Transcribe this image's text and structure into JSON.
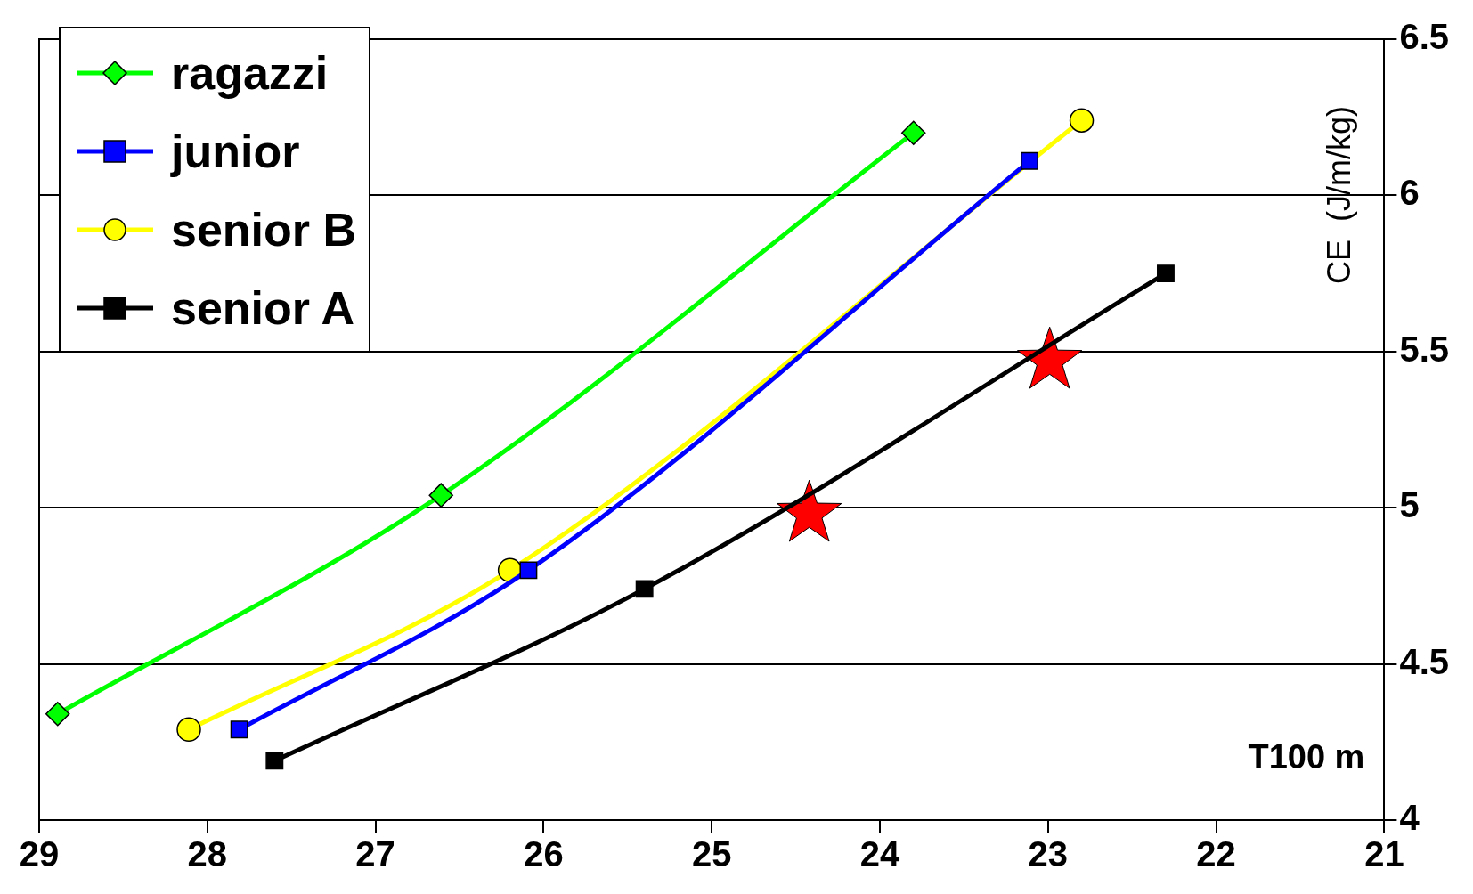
{
  "chart_data": {
    "type": "line",
    "xlabel": "T100 m",
    "ylabel": "CE  (J/m/kg)",
    "xlim": [
      29,
      21
    ],
    "xticks": [
      29,
      28,
      27,
      26,
      25,
      24,
      23,
      22,
      21
    ],
    "ylim": [
      4,
      6.5
    ],
    "yticks": [
      4,
      4.5,
      5,
      5.5,
      6,
      6.5
    ],
    "grid": "y",
    "legend": "top left",
    "line_style": "solid",
    "series": [
      {
        "name": "ragazzi",
        "color": "#00ff00",
        "marker": "diamond",
        "x": [
          28.89,
          26.61,
          23.8
        ],
        "values": [
          4.34,
          5.04,
          6.2
        ]
      },
      {
        "name": "junior",
        "color": "#0000ff",
        "marker": "square",
        "x": [
          27.81,
          26.09,
          23.11
        ],
        "values": [
          4.29,
          4.8,
          6.11
        ]
      },
      {
        "name": "senior B",
        "color": "#ffff00",
        "marker": "circle",
        "x": [
          28.11,
          26.2,
          22.8
        ],
        "values": [
          4.29,
          4.8,
          6.24
        ]
      },
      {
        "name": "senior A",
        "color": "#000000",
        "marker": "square",
        "x": [
          27.6,
          25.4,
          22.3
        ],
        "values": [
          4.19,
          4.74,
          5.75
        ]
      },
      {
        "type": "scatter",
        "color": "#ff0000",
        "marker": "star",
        "x": [
          24.42,
          22.99
        ],
        "values": [
          4.98,
          5.47
        ]
      }
    ]
  }
}
